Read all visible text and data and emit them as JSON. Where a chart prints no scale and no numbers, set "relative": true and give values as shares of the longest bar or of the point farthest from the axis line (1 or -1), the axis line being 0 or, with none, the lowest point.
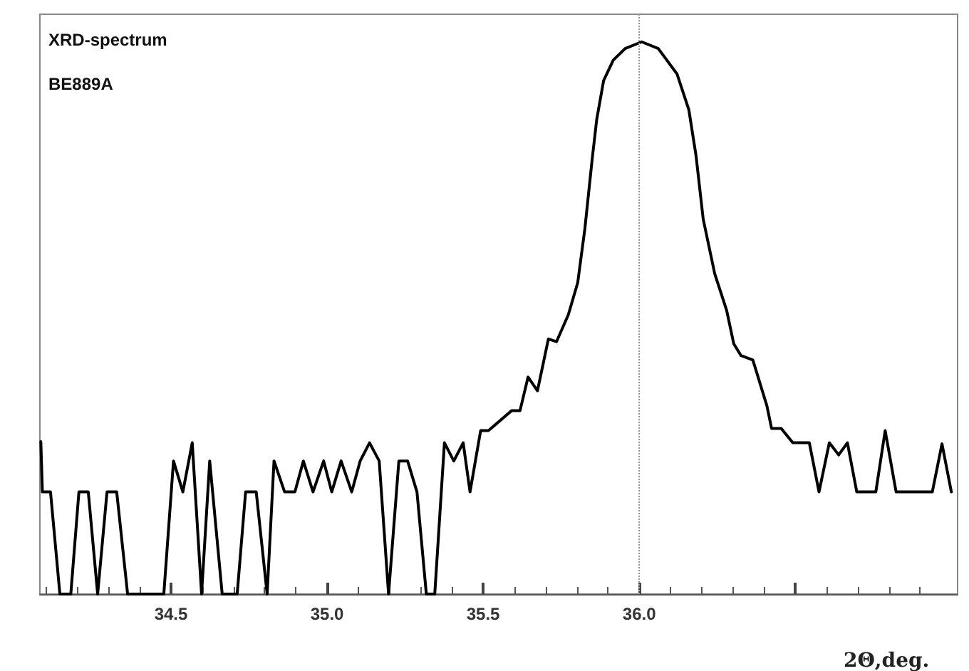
{
  "chart_data": {
    "type": "line",
    "relative": true,
    "xlabel": "2Θ,deg.",
    "annotations": [
      "XRD-spectrum",
      "BE889A"
    ],
    "xlim": [
      34.08,
      37.02
    ],
    "xticks": [
      34.5,
      {
        "value": 35.0,
        "label": "35.0"
      },
      35.5,
      {
        "value": 36.0,
        "label": "36.0"
      },
      {
        "value": 36.5,
        "label": null
      }
    ],
    "tick_labels": "x",
    "grid": false,
    "marker": "none",
    "line_style": "solid",
    "ref_lines": [
      {
        "axis": "x",
        "value": 36.0,
        "color": "#999999",
        "line_style": "dotted"
      }
    ],
    "series": [
      {
        "color": "#000000",
        "x": [
          34.083,
          34.088,
          34.114,
          34.144,
          34.179,
          34.205,
          34.235,
          34.265,
          34.295,
          34.326,
          34.361,
          34.477,
          34.508,
          34.538,
          34.568,
          34.598,
          34.624,
          34.664,
          34.712,
          34.739,
          34.773,
          34.808,
          34.83,
          34.864,
          34.897,
          34.924,
          34.955,
          34.989,
          35.015,
          35.045,
          35.079,
          35.106,
          35.136,
          35.167,
          35.197,
          35.23,
          35.258,
          35.288,
          35.318,
          35.345,
          35.376,
          35.406,
          35.436,
          35.458,
          35.492,
          35.517,
          35.591,
          35.618,
          35.644,
          35.674,
          35.709,
          35.735,
          35.773,
          35.803,
          35.826,
          35.849,
          35.864,
          35.886,
          35.917,
          35.955,
          36.008,
          36.061,
          36.121,
          36.159,
          36.182,
          36.205,
          36.242,
          36.28,
          36.303,
          36.326,
          36.364,
          36.409,
          36.424,
          36.455,
          36.492,
          36.545,
          36.576,
          36.609,
          36.639,
          36.667,
          36.697,
          36.758,
          36.788,
          36.823,
          36.939,
          36.97,
          37.0
        ],
        "values": [
          0.276,
          0.185,
          0.185,
          0,
          0,
          0.185,
          0.185,
          0,
          0.185,
          0.185,
          0,
          0,
          0.241,
          0.185,
          0.274,
          0,
          0.241,
          0,
          0,
          0.185,
          0.185,
          0,
          0.241,
          0.185,
          0.185,
          0.241,
          0.185,
          0.241,
          0.185,
          0.241,
          0.185,
          0.241,
          0.274,
          0.241,
          0,
          0.241,
          0.241,
          0.185,
          0,
          0,
          0.274,
          0.241,
          0.274,
          0.185,
          0.296,
          0.296,
          0.332,
          0.332,
          0.393,
          0.368,
          0.462,
          0.457,
          0.506,
          0.564,
          0.662,
          0.786,
          0.86,
          0.93,
          0.967,
          0.988,
          1.0,
          0.988,
          0.942,
          0.877,
          0.794,
          0.679,
          0.58,
          0.514,
          0.453,
          0.432,
          0.424,
          0.341,
          0.3,
          0.3,
          0.274,
          0.274,
          0.185,
          0.274,
          0.252,
          0.274,
          0.185,
          0.185,
          0.296,
          0.185,
          0.185,
          0.272,
          0.185
        ]
      }
    ]
  }
}
